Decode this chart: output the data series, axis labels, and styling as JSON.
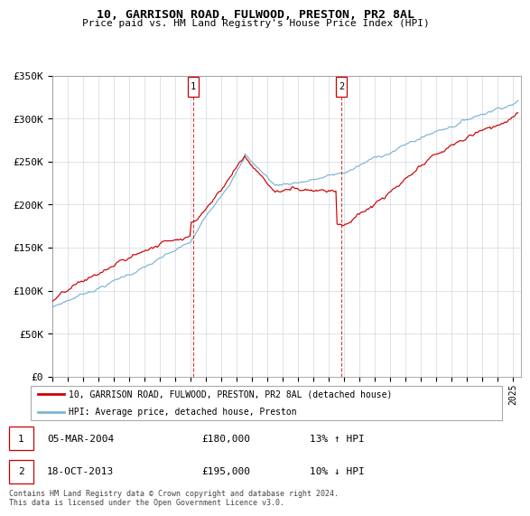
{
  "title": "10, GARRISON ROAD, FULWOOD, PRESTON, PR2 8AL",
  "subtitle": "Price paid vs. HM Land Registry's House Price Index (HPI)",
  "legend_line1": "10, GARRISON ROAD, FULWOOD, PRESTON, PR2 8AL (detached house)",
  "legend_line2": "HPI: Average price, detached house, Preston",
  "table_rows": [
    {
      "num": "1",
      "date": "05-MAR-2004",
      "price": "£180,000",
      "hpi": "13% ↑ HPI"
    },
    {
      "num": "2",
      "date": "18-OCT-2013",
      "price": "£195,000",
      "hpi": "10% ↓ HPI"
    }
  ],
  "footnote": "Contains HM Land Registry data © Crown copyright and database right 2024.\nThis data is licensed under the Open Government Licence v3.0.",
  "red_color": "#cc0000",
  "blue_color": "#7fb3d3",
  "ylim": [
    0,
    350000
  ],
  "yticks": [
    0,
    50000,
    100000,
    150000,
    200000,
    250000,
    300000,
    350000
  ],
  "ytick_labels": [
    "£0",
    "£50K",
    "£100K",
    "£150K",
    "£200K",
    "£250K",
    "£300K",
    "£350K"
  ],
  "marker1_x": 2004.17,
  "marker2_x": 2013.8,
  "xmin": 1995,
  "xmax": 2025.5
}
